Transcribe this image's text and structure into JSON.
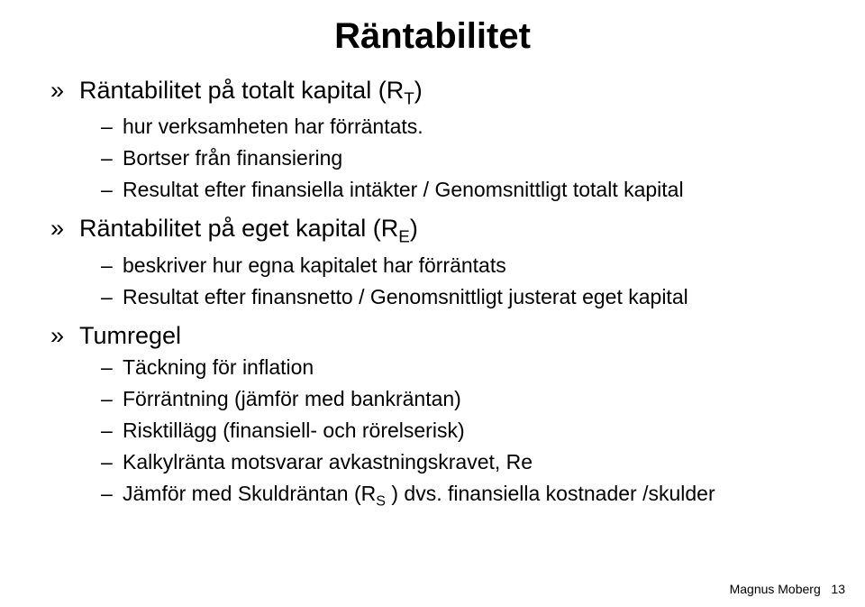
{
  "title": "Räntabilitet",
  "bullets": {
    "top_marker": "»",
    "sub_marker": "–",
    "item1": {
      "label_pre": "Räntabilitet på totalt kapital (R",
      "label_sub": "T",
      "label_post": ")",
      "sub1": "hur verksamheten har förräntats.",
      "sub2": "Bortser från finansiering",
      "sub3": "Resultat efter finansiella intäkter / Genomsnittligt totalt kapital"
    },
    "item2": {
      "label_pre": "Räntabilitet på eget kapital (R",
      "label_sub": "E",
      "label_post": ")",
      "sub1": "beskriver hur egna kapitalet har förräntats",
      "sub2": "Resultat efter finansnetto / Genomsnittligt justerat eget kapital"
    },
    "item3": {
      "label": "Tumregel",
      "sub1": "Täckning för inflation",
      "sub2": "Förräntning (jämför med bankräntan)",
      "sub3": "Risktillägg (finansiell- och rörelserisk)",
      "sub4": "Kalkylränta motsvarar avkastningskravet, Re",
      "sub5_pre": "Jämför med Skuldräntan (R",
      "sub5_sub": "S",
      "sub5_post": " ) dvs. finansiella kostnader /skulder"
    }
  },
  "footer": {
    "author": "Magnus Moberg",
    "page": "13"
  },
  "colors": {
    "background": "#ffffff",
    "text": "#000000"
  }
}
